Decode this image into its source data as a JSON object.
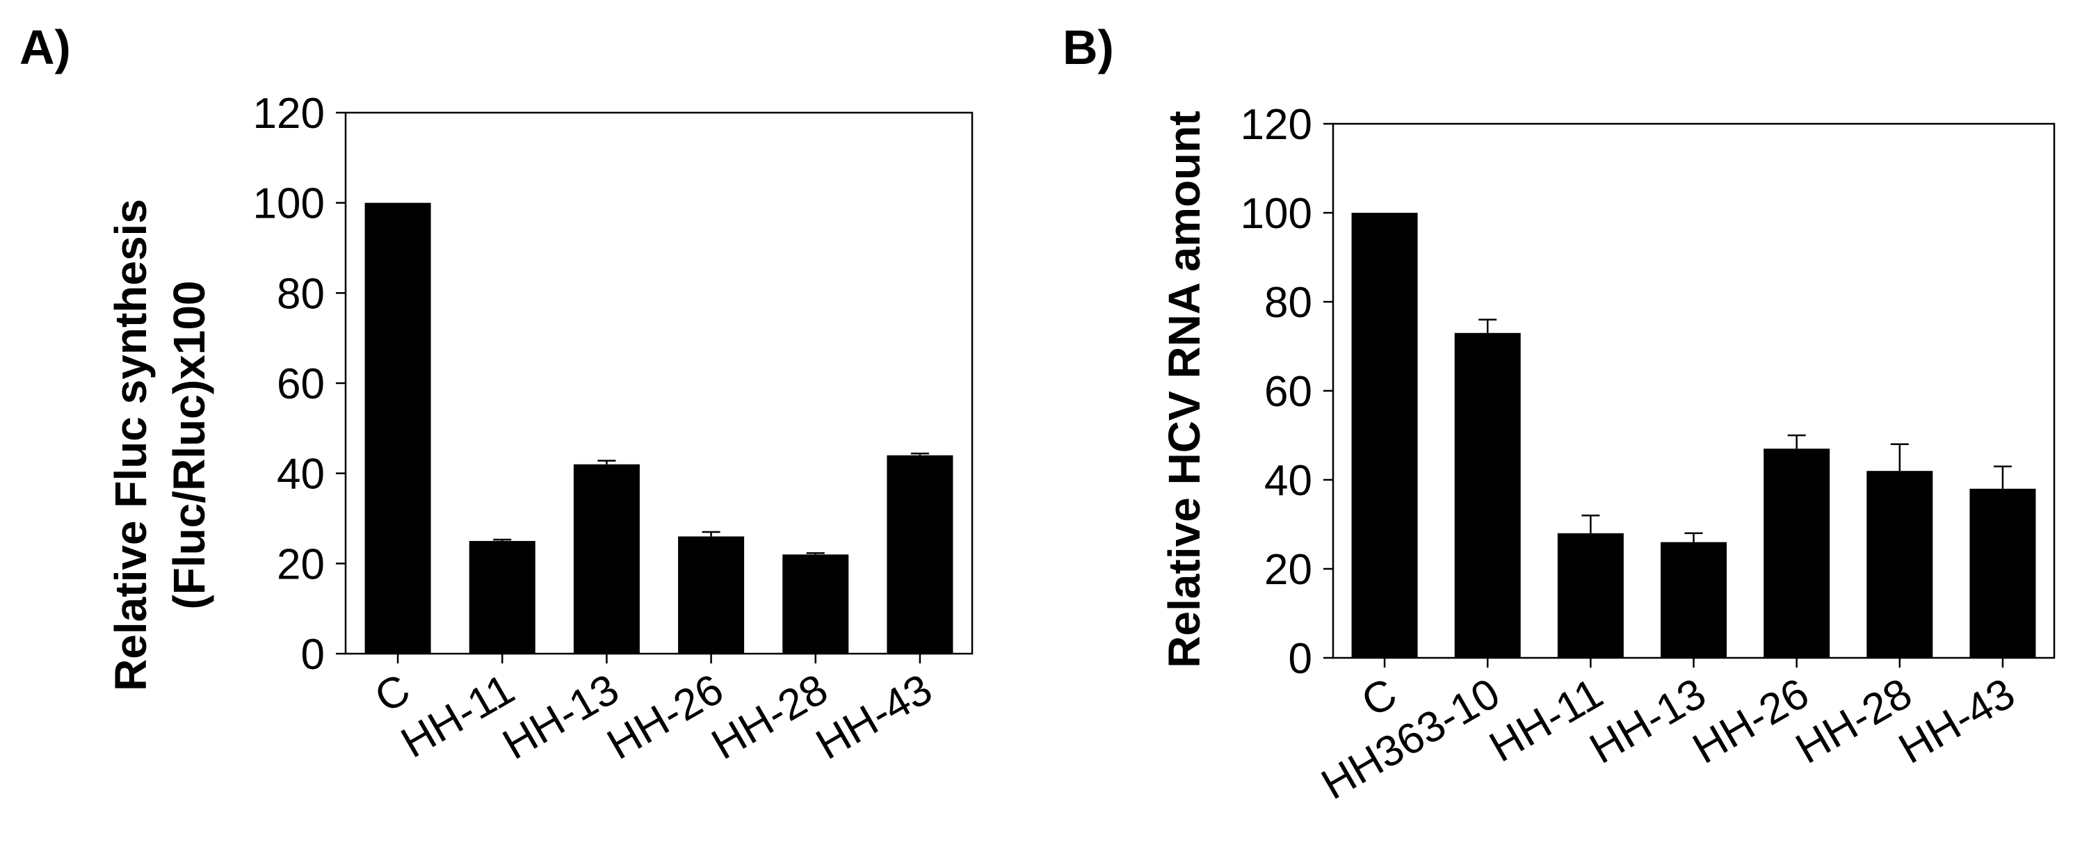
{
  "colors": {
    "bar": "#000000",
    "axis": "#000000",
    "background": "#ffffff"
  },
  "chart_data": [
    {
      "type": "bar",
      "panel_label": "A)",
      "title": "",
      "xlabel": "",
      "ylabel_lines": [
        "Relative Fluc synthesis",
        "(Fluc/Rluc)x100"
      ],
      "ylim": [
        0,
        120
      ],
      "yticks": [
        0,
        20,
        40,
        60,
        80,
        100,
        120
      ],
      "grid": false,
      "categories": [
        "C",
        "HH-11",
        "HH-13",
        "HH-26",
        "HH-28",
        "HH-43"
      ],
      "values": [
        100,
        25,
        42,
        26,
        22,
        44
      ],
      "errors": [
        0,
        0.3,
        0.8,
        1,
        0.3,
        0.4
      ]
    },
    {
      "type": "bar",
      "panel_label": "B)",
      "title": "",
      "xlabel": "",
      "ylabel_lines": [
        "Relative HCV RNA amount"
      ],
      "ylim": [
        0,
        120
      ],
      "yticks": [
        0,
        20,
        40,
        60,
        80,
        100,
        120
      ],
      "grid": false,
      "categories": [
        "C",
        "HH363-10",
        "HH-11",
        "HH-13",
        "HH-26",
        "HH-28",
        "HH-43"
      ],
      "values": [
        100,
        73,
        28,
        26,
        47,
        42,
        38
      ],
      "errors": [
        0,
        3,
        4,
        2,
        3,
        6,
        5
      ]
    }
  ]
}
